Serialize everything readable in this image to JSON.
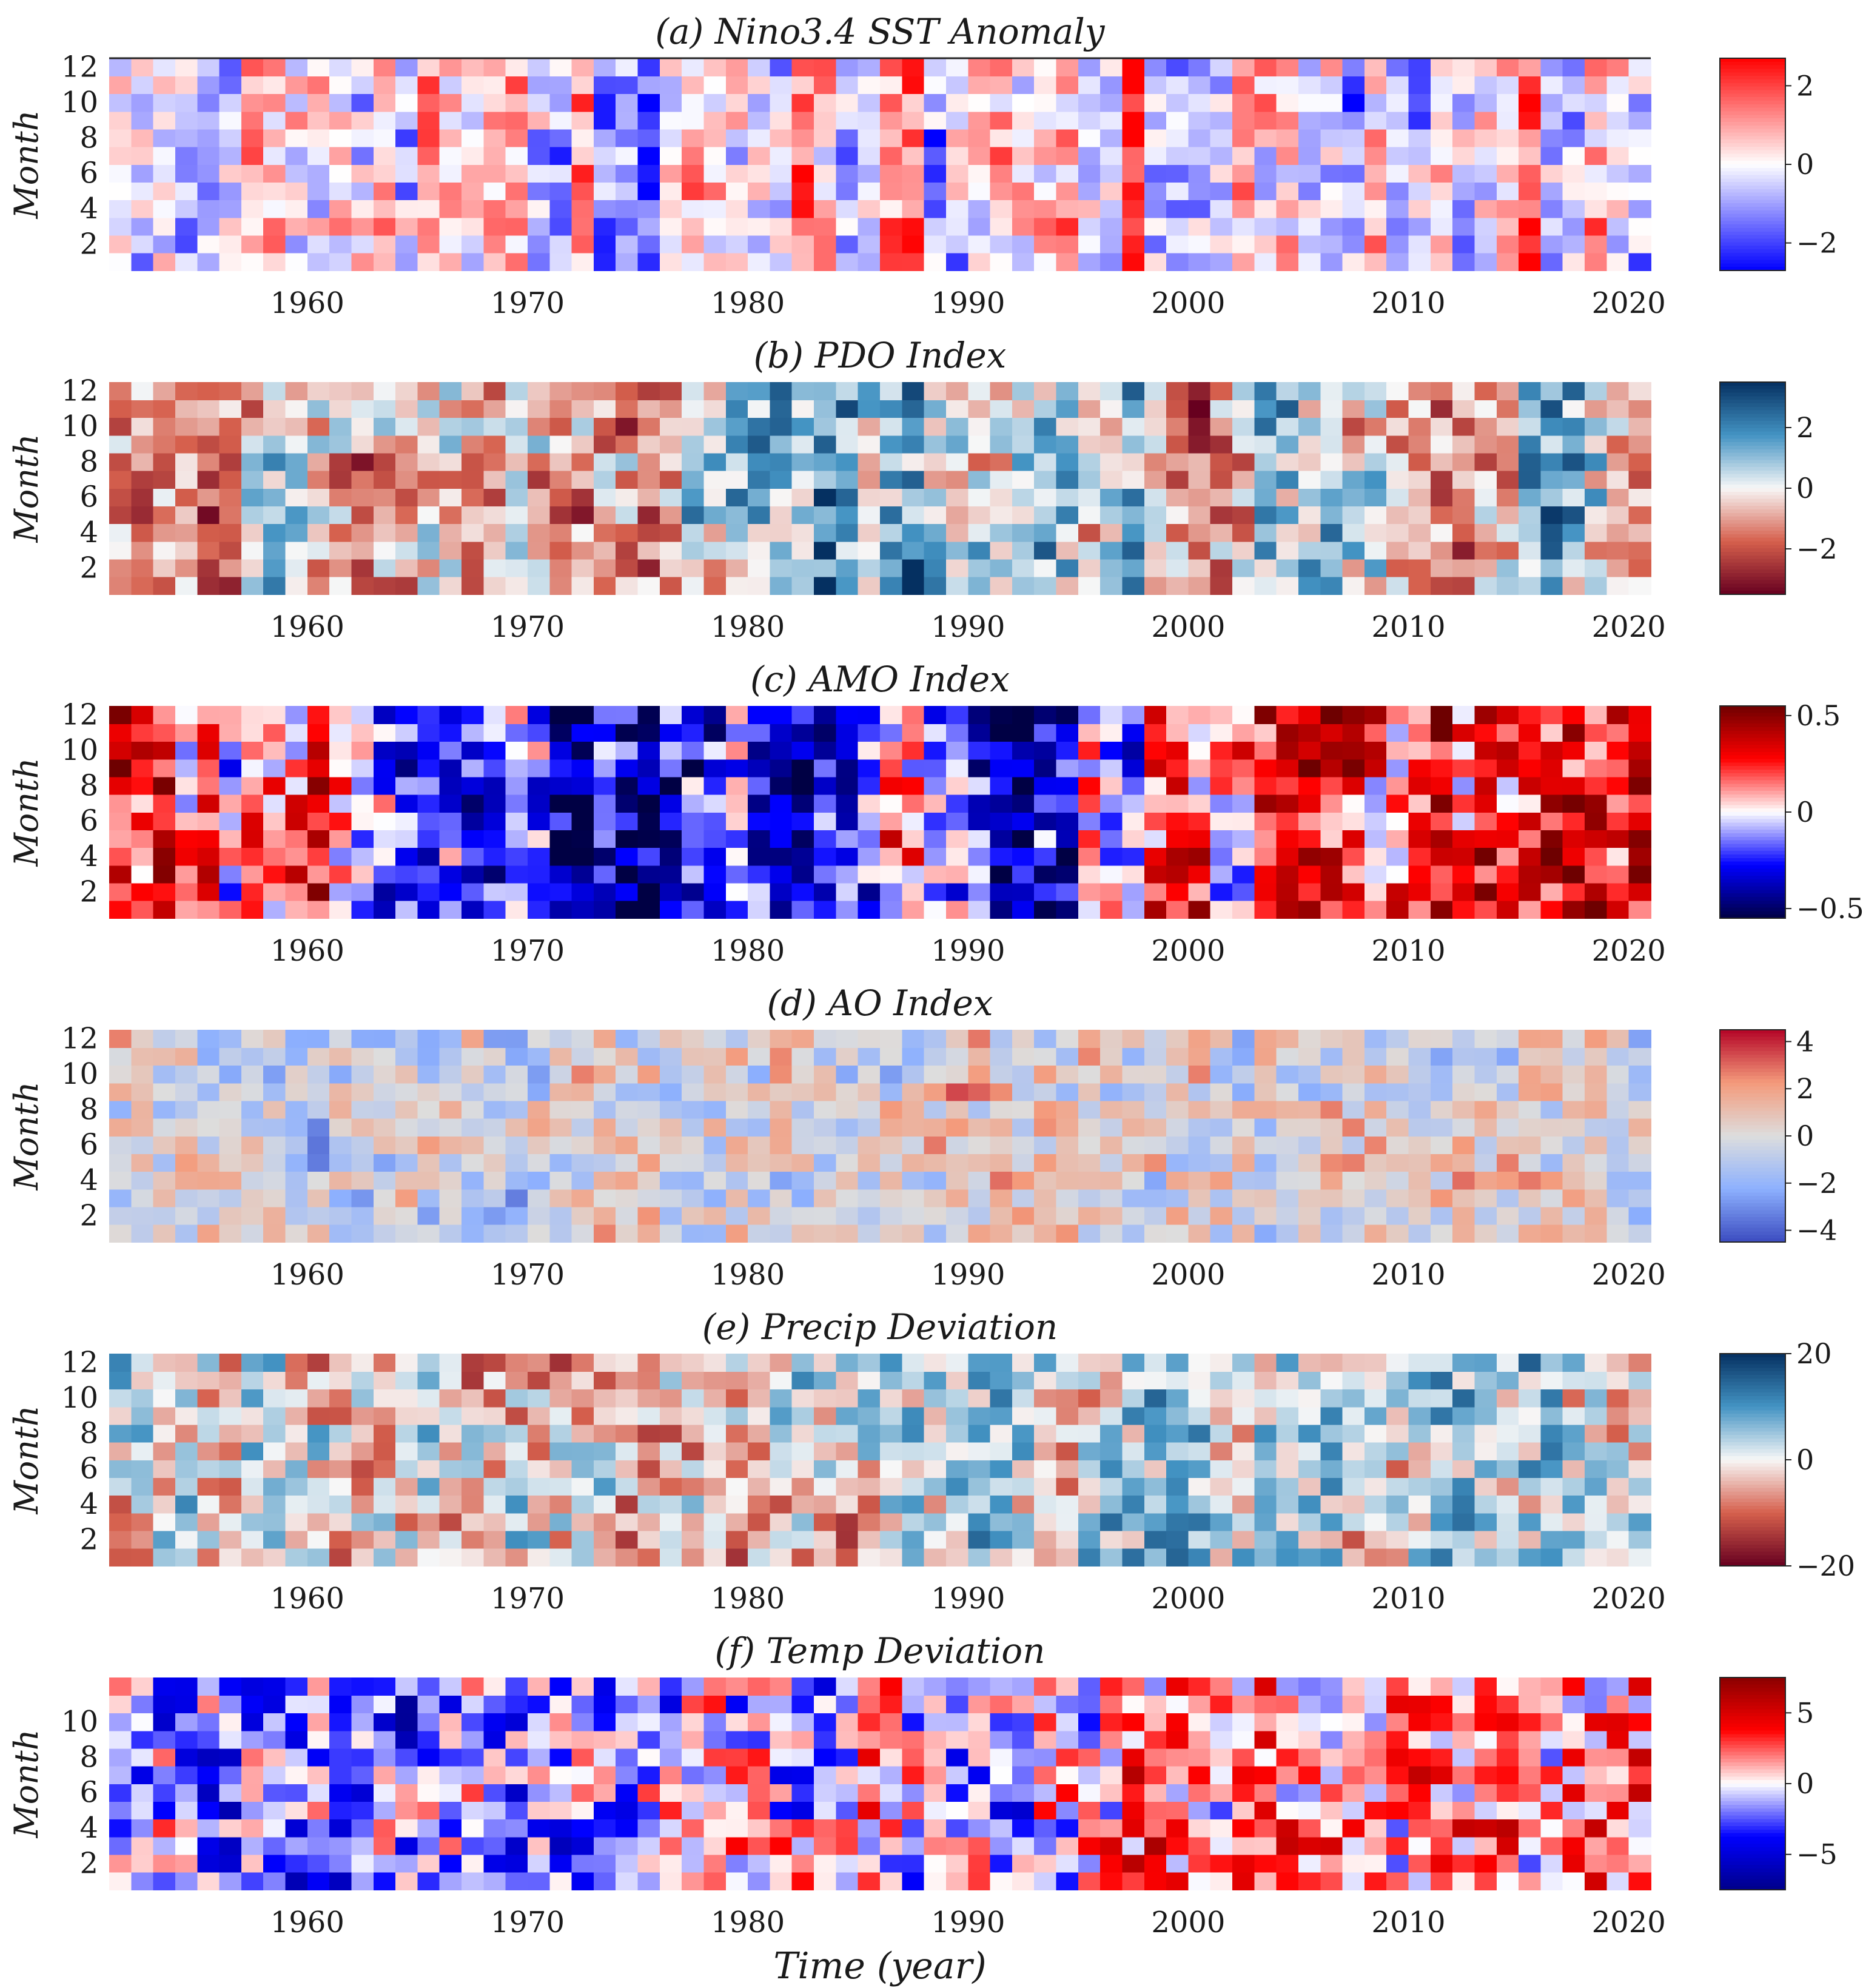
{
  "chart_data": [
    {
      "type": "heatmap",
      "title": "(a) Nino3.4 SST Anomaly",
      "xlabel": "",
      "ylabel": "Month",
      "xlim": [
        1951,
        2020
      ],
      "ylim": [
        1,
        12
      ],
      "xticks": [
        "1960",
        "1970",
        "1980",
        "1990",
        "2000",
        "2010",
        "2020"
      ],
      "yticks": [
        "2",
        "4",
        "6",
        "8",
        "10",
        "12"
      ],
      "colorbar": {
        "range": [
          -2.7,
          2.7
        ],
        "ticks": [
          "2",
          "0",
          "−2"
        ],
        "tick_values": [
          2,
          0,
          -2
        ],
        "colormap": "blue-white-red",
        "colors": [
          "#0000ff",
          "#ffffff",
          "#ff0000"
        ]
      },
      "yearly_values": [
        0.1,
        -0.4,
        0.3,
        -0.6,
        -1.2,
        -0.9,
        0.9,
        0.5,
        -0.2,
        -0.1,
        0.1,
        -0.3,
        0.6,
        -0.7,
        1.0,
        0.1,
        -0.3,
        0.4,
        0.6,
        -0.7,
        -1.0,
        1.6,
        -1.4,
        -1.1,
        -1.6,
        0.4,
        0.6,
        0.1,
        0.2,
        0.3,
        -0.2,
        1.8,
        0.9,
        -0.6,
        -0.5,
        0.9,
        1.2,
        -1.4,
        -0.6,
        0.3,
        0.9,
        0.5,
        0.2,
        0.7,
        -0.6,
        -0.4,
        2.0,
        -0.8,
        -1.3,
        -1.0,
        -0.3,
        0.8,
        0.3,
        0.5,
        -0.4,
        0.2,
        -1.0,
        0.7,
        -1.0,
        -0.9,
        0.3,
        -0.4,
        -0.1,
        0.5,
        2.1,
        -0.3,
        -0.6,
        0.8,
        0.3,
        -0.5
      ]
    },
    {
      "type": "heatmap",
      "title": "(b) PDO Index",
      "xlabel": "",
      "ylabel": "Month",
      "xlim": [
        1951,
        2020
      ],
      "ylim": [
        1,
        12
      ],
      "xticks": [
        "1960",
        "1970",
        "1980",
        "1990",
        "2000",
        "2010",
        "2020"
      ],
      "yticks": [
        "2",
        "4",
        "6",
        "8",
        "10",
        "12"
      ],
      "colorbar": {
        "range": [
          -3.5,
          3.5
        ],
        "ticks": [
          "2",
          "0",
          "−2"
        ],
        "tick_values": [
          2,
          0,
          -2
        ],
        "colormap": "red-white-blue",
        "colors": [
          "#67001f",
          "#d6604d",
          "#f7f7f7",
          "#4393c3",
          "#053061"
        ]
      },
      "yearly_values": [
        -0.4,
        -0.7,
        -1.0,
        -0.9,
        -2.2,
        -1.8,
        -0.2,
        0.4,
        0.3,
        -0.1,
        -0.6,
        -1.4,
        -0.8,
        -1.0,
        -0.4,
        -0.6,
        -0.5,
        -0.7,
        -0.3,
        -0.8,
        -1.7,
        -1.2,
        -0.9,
        -1.1,
        -1.5,
        -0.6,
        0.5,
        0.2,
        0.3,
        0.6,
        0.9,
        0.8,
        1.8,
        1.1,
        0.6,
        1.4,
        1.8,
        0.3,
        -0.2,
        0.1,
        -0.4,
        0.8,
        1.3,
        0.6,
        -0.1,
        0.6,
        1.6,
        0.1,
        -1.1,
        -1.5,
        -1.0,
        -0.5,
        0.9,
        0.6,
        0.3,
        0.7,
        -0.3,
        -0.1,
        -0.6,
        -0.5,
        -1.1,
        -1.3,
        -0.4,
        -0.3,
        0.9,
        1.6,
        0.8,
        -0.2,
        -0.4,
        -0.1
      ]
    },
    {
      "type": "heatmap",
      "title": "(c) AMO Index",
      "xlabel": "",
      "ylabel": "Month",
      "xlim": [
        1951,
        2020
      ],
      "ylim": [
        1,
        12
      ],
      "xticks": [
        "1960",
        "1970",
        "1980",
        "1990",
        "2000",
        "2010",
        "2020"
      ],
      "yticks": [
        "2",
        "4",
        "6",
        "8",
        "10",
        "12"
      ],
      "colorbar": {
        "range": [
          -0.55,
          0.55
        ],
        "ticks": [
          "0.5",
          "0",
          "−0.5"
        ],
        "tick_values": [
          0.5,
          0,
          -0.5
        ],
        "colormap": "dark-blue-white-dark-red",
        "colors": [
          "#000044",
          "#0000ff",
          "#ffffff",
          "#ff0000",
          "#6e0000"
        ]
      },
      "yearly_values": [
        0.35,
        0.28,
        0.3,
        0.05,
        0.24,
        -0.08,
        0.22,
        0.1,
        0.15,
        0.32,
        0.12,
        -0.05,
        -0.18,
        -0.28,
        -0.22,
        -0.15,
        -0.3,
        -0.25,
        -0.1,
        -0.2,
        -0.38,
        -0.45,
        -0.32,
        -0.42,
        -0.4,
        -0.36,
        -0.3,
        -0.2,
        -0.05,
        -0.24,
        -0.32,
        -0.36,
        -0.3,
        -0.34,
        -0.12,
        0.18,
        0.05,
        -0.15,
        -0.22,
        -0.3,
        -0.33,
        -0.36,
        -0.3,
        -0.25,
        0.12,
        0.0,
        -0.1,
        0.28,
        0.32,
        0.2,
        0.08,
        0.1,
        0.26,
        0.3,
        0.38,
        0.33,
        0.22,
        0.18,
        0.2,
        0.3,
        0.36,
        0.15,
        0.28,
        0.22,
        0.3,
        0.35,
        0.38,
        0.32,
        0.25,
        0.3
      ]
    },
    {
      "type": "heatmap",
      "title": "(d) AO Index",
      "xlabel": "",
      "ylabel": "Month",
      "xlim": [
        1951,
        2020
      ],
      "ylim": [
        1,
        12
      ],
      "xticks": [
        "1960",
        "1970",
        "1980",
        "1990",
        "2000",
        "2010",
        "2020"
      ],
      "yticks": [
        "2",
        "4",
        "6",
        "8",
        "10",
        "12"
      ],
      "colorbar": {
        "range": [
          -4.5,
          4.5
        ],
        "ticks": [
          "4",
          "2",
          "0",
          "−2",
          "−4"
        ],
        "tick_values": [
          4,
          2,
          0,
          -2,
          -4
        ],
        "colormap": "coolwarm",
        "colors": [
          "#3b4cc0",
          "#8db0fe",
          "#dddddd",
          "#f49a7b",
          "#b40426"
        ]
      },
      "yearly_values": [
        -0.2,
        0.1,
        -0.3,
        0.2,
        -0.4,
        0.1,
        -0.2,
        -0.5,
        -0.1,
        -0.8,
        0.2,
        -0.3,
        -0.6,
        0.1,
        -0.2,
        -0.4,
        0.3,
        -0.5,
        -0.9,
        -0.4,
        0.1,
        0.4,
        0.2,
        0.1,
        0.5,
        -0.3,
        -0.6,
        -0.4,
        0.0,
        -0.7,
        0.2,
        -0.1,
        0.3,
        0.2,
        -0.5,
        -0.3,
        -0.6,
        0.4,
        1.2,
        0.9,
        0.4,
        0.6,
        0.7,
        0.5,
        0.3,
        -0.4,
        0.2,
        0.1,
        0.4,
        0.2,
        0.3,
        -0.1,
        0.2,
        0.0,
        0.4,
        0.2,
        -0.1,
        0.3,
        -0.2,
        -0.8,
        -0.3,
        0.2,
        0.1,
        0.3,
        0.4,
        0.2,
        0.5,
        -0.1,
        0.6,
        0.3
      ]
    },
    {
      "type": "heatmap",
      "title": "(e) Precip Deviation",
      "xlabel": "",
      "ylabel": "Month",
      "xlim": [
        1951,
        2020
      ],
      "ylim": [
        1,
        12
      ],
      "xticks": [
        "1960",
        "1970",
        "1980",
        "1990",
        "2000",
        "2010",
        "2020"
      ],
      "yticks": [
        "2",
        "4",
        "6",
        "8",
        "10",
        "12"
      ],
      "colorbar": {
        "range": [
          -20,
          20
        ],
        "ticks": [
          "20",
          "0",
          "−20"
        ],
        "tick_values": [
          20,
          0,
          -20
        ],
        "colormap": "red-white-blue",
        "colors": [
          "#67001f",
          "#d6604d",
          "#f7f7f7",
          "#4393c3",
          "#053061"
        ]
      },
      "yearly_values": [
        1,
        2,
        -2,
        3,
        -1,
        -3,
        4,
        2,
        1,
        -2,
        -4,
        -3,
        -1,
        -2,
        1,
        -3,
        -2,
        -4,
        -1,
        -2,
        -3,
        -1,
        -2,
        -4,
        -3,
        -2,
        -1,
        -3,
        -4,
        -2,
        -1,
        1,
        -2,
        -3,
        -1,
        2,
        5,
        3,
        -1,
        4,
        6,
        2,
        -1,
        -2,
        1,
        3,
        2,
        4,
        6,
        3,
        1,
        2,
        4,
        5,
        3,
        2,
        -1,
        1,
        2,
        3,
        4,
        5,
        2,
        1,
        3,
        4,
        2,
        1,
        -1,
        1
      ]
    },
    {
      "type": "heatmap",
      "title": "(f) Temp Deviation",
      "xlabel": "Time (year)",
      "ylabel": "Month",
      "xlim": [
        1951,
        2020
      ],
      "ylim": [
        1,
        12
      ],
      "xticks": [
        "1960",
        "1970",
        "1980",
        "1990",
        "2000",
        "2010",
        "2020"
      ],
      "yticks": [
        "2",
        "4",
        "6",
        "8",
        "10"
      ],
      "colorbar": {
        "range": [
          -7.5,
          7.5
        ],
        "ticks": [
          "5",
          "0",
          "−5"
        ],
        "tick_values": [
          5,
          0,
          -5
        ],
        "colormap": "blue-white-red",
        "colors": [
          "#00008a",
          "#0000ff",
          "#ffffff",
          "#ff0000",
          "#8a0000"
        ]
      },
      "yearly_values": [
        -1.5,
        -2.0,
        -1.2,
        -2.5,
        -1.8,
        -2.2,
        -1.0,
        -1.6,
        -2.4,
        -1.9,
        -2.3,
        -1.1,
        -1.7,
        -2.6,
        -2.0,
        -1.5,
        -1.3,
        -2.2,
        -2.8,
        -2.1,
        -1.6,
        -1.2,
        -1.8,
        -2.5,
        -1.4,
        -0.8,
        -0.2,
        0.5,
        -0.6,
        0.3,
        -0.4,
        -0.8,
        -0.5,
        -1.0,
        0.2,
        0.4,
        -0.3,
        -0.6,
        -1.2,
        -0.8,
        -1.5,
        -0.9,
        -0.4,
        -0.2,
        0.3,
        1.2,
        1.6,
        2.0,
        1.4,
        1.0,
        1.3,
        1.8,
        2.2,
        1.5,
        1.7,
        2.0,
        1.3,
        1.0,
        1.6,
        2.1,
        1.4,
        1.2,
        1.8,
        2.3,
        1.5,
        1.0,
        1.6,
        2.2,
        1.8,
        1.4
      ]
    }
  ]
}
